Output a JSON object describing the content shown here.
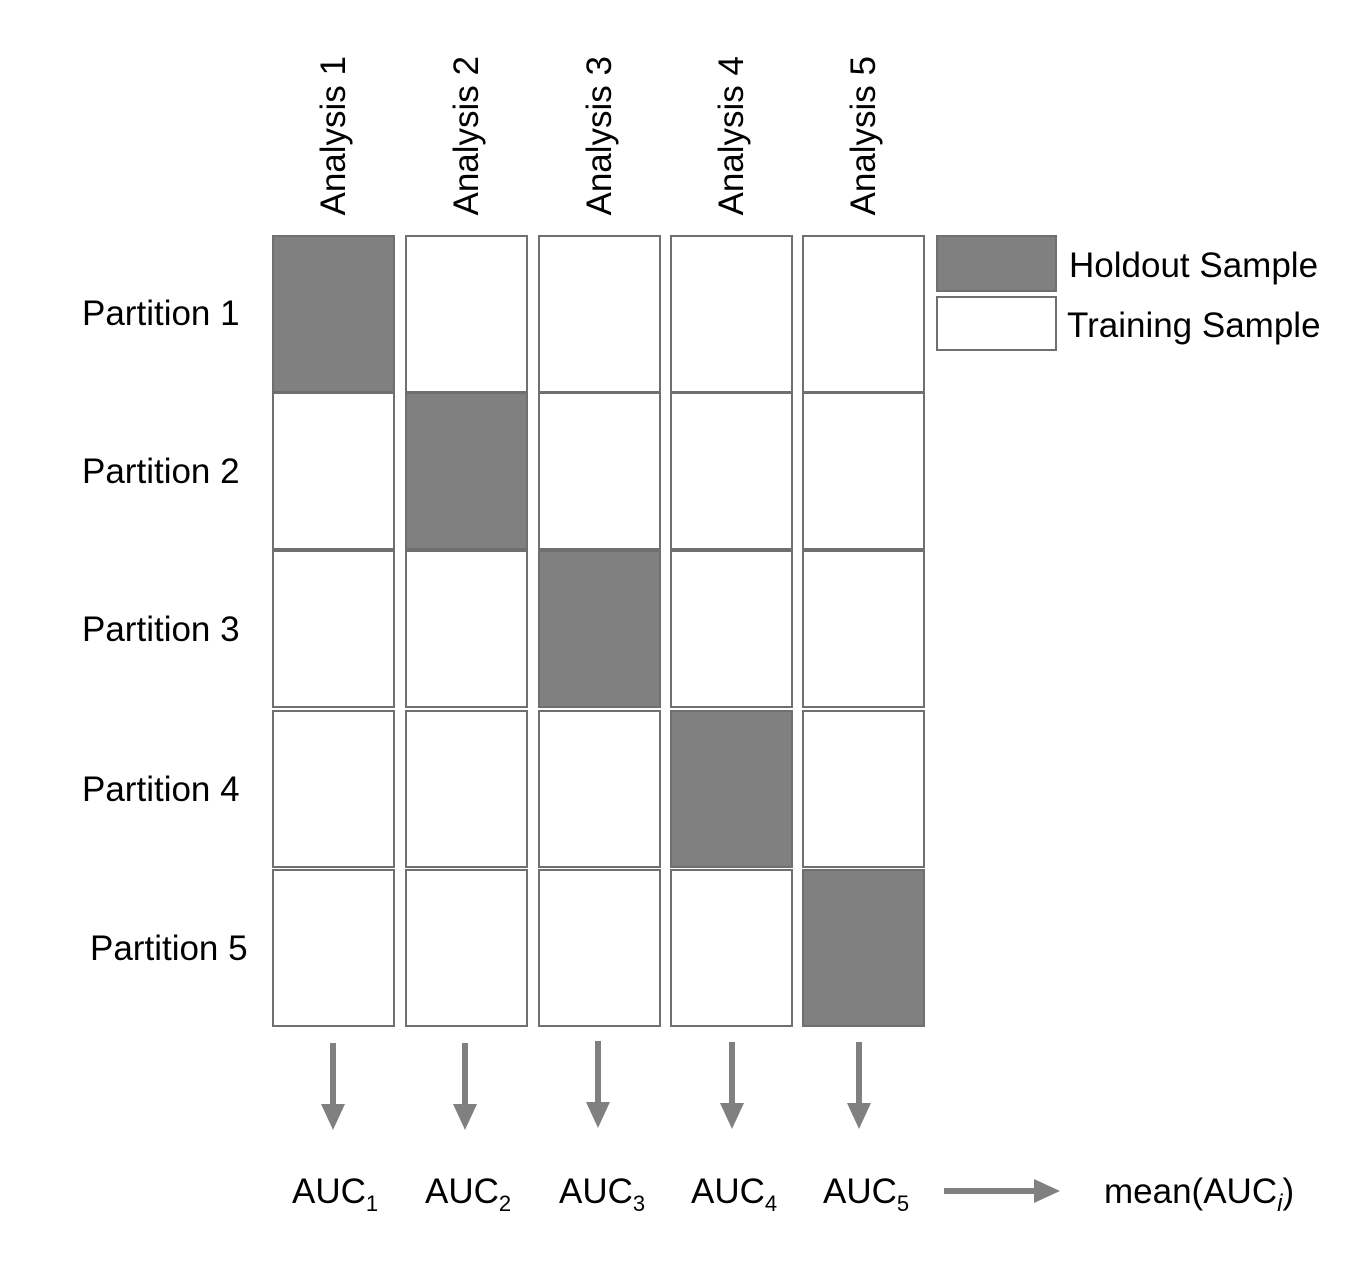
{
  "columns": [
    "Analysis 1",
    "Analysis 2",
    "Analysis 3",
    "Analysis 4",
    "Analysis 5"
  ],
  "rows": [
    "Partition 1",
    "Partition 2",
    "Partition 3",
    "Partition 4",
    "Partition 5"
  ],
  "holdout_cells": [
    [
      0,
      0
    ],
    [
      1,
      1
    ],
    [
      2,
      2
    ],
    [
      3,
      3
    ],
    [
      4,
      4
    ]
  ],
  "legend": {
    "holdout_label": "Holdout Sample",
    "training_label": "Training Sample"
  },
  "outputs": {
    "auc_base": "AUC",
    "auc_subscripts": [
      "1",
      "2",
      "3",
      "4",
      "5"
    ],
    "mean_prefix": "mean(AUC",
    "mean_subscript": "i",
    "mean_suffix": ")"
  },
  "colors": {
    "holdout_fill": "#808080",
    "training_fill": "#ffffff",
    "border": "#6f6f6f",
    "arrow": "#808080"
  }
}
